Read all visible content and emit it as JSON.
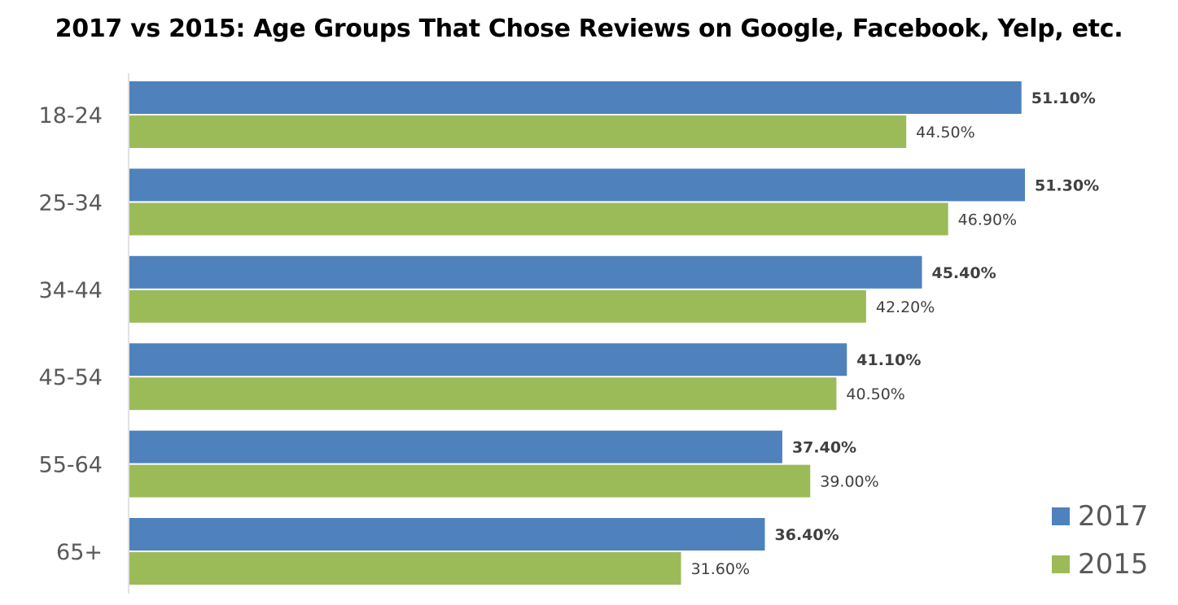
{
  "chart_data": {
    "type": "bar",
    "orientation": "horizontal",
    "title": "2017 vs 2015: Age Groups That Chose Reviews on Google, Facebook, Yelp, etc.",
    "xlabel": "",
    "ylabel": "",
    "categories": [
      "18-24",
      "25-34",
      "34-44",
      "45-54",
      "55-64",
      "65+"
    ],
    "series": [
      {
        "name": "2017",
        "color": "#4F81BD",
        "values": [
          51.1,
          51.3,
          45.4,
          41.1,
          37.4,
          36.4
        ],
        "labels": [
          "51.10%",
          "51.30%",
          "45.40%",
          "41.10%",
          "37.40%",
          "36.40%"
        ],
        "label_bold": true
      },
      {
        "name": "2015",
        "color": "#9BBB59",
        "values": [
          44.5,
          46.9,
          42.2,
          40.5,
          39.0,
          31.6
        ],
        "labels": [
          "44.50%",
          "46.90%",
          "42.20%",
          "40.50%",
          "39.00%",
          "31.60%"
        ],
        "label_bold": false
      }
    ],
    "xlim": [
      0,
      52
    ],
    "grid": false,
    "legend": "bottom-right"
  }
}
